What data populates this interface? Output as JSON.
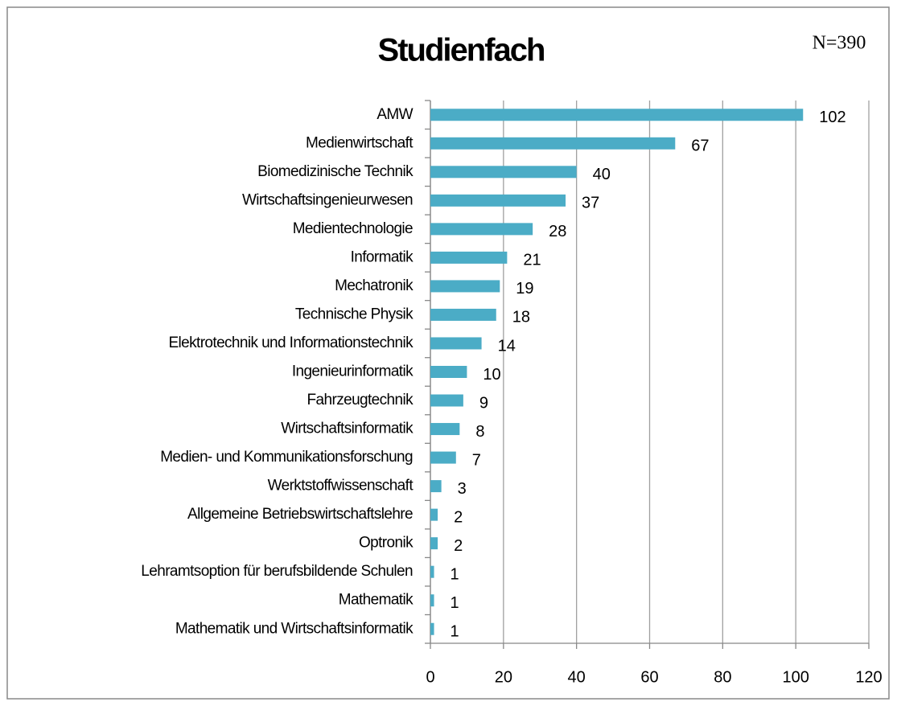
{
  "chart_data": {
    "type": "bar",
    "orientation": "horizontal",
    "title": "Studienfach",
    "annotation": "N=390",
    "categories": [
      "AMW",
      "Medienwirtschaft",
      "Biomedizinische Technik",
      "Wirtschaftsingenieurwesen",
      "Medientechnologie",
      "Informatik",
      "Mechatronik",
      "Technische Physik",
      "Elektrotechnik und Informationstechnik",
      "Ingenieurinformatik",
      "Fahrzeugtechnik",
      "Wirtschaftsinformatik",
      "Medien- und Kommunikationsforschung",
      "Werktstoffwissenschaft",
      "Allgemeine Betriebswirtschaftslehre",
      "Optronik",
      "Lehramtsoption für berufsbildende Schulen",
      "Mathematik",
      "Mathematik und Wirtschaftsinformatik"
    ],
    "values": [
      102,
      67,
      40,
      37,
      28,
      21,
      19,
      18,
      14,
      10,
      9,
      8,
      7,
      3,
      2,
      2,
      1,
      1,
      1
    ],
    "color": "#4bacc6",
    "xlim": [
      0,
      120
    ],
    "xticks": [
      0,
      20,
      40,
      60,
      80,
      100,
      120
    ],
    "grid": true
  }
}
